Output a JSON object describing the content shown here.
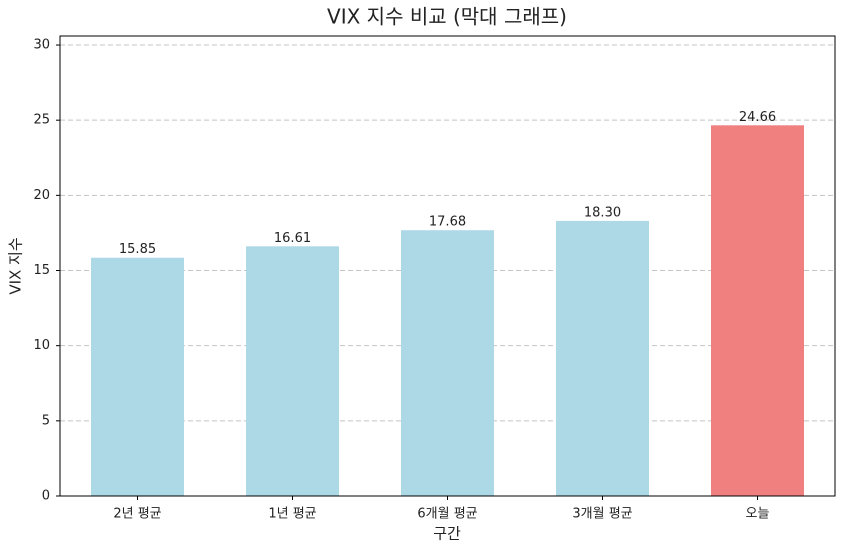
{
  "chart_data": {
    "type": "bar",
    "title": "VIX 지수 비교 (막대 그래프)",
    "x_label": "구간",
    "y_label": "VIX 지수",
    "categories": [
      "2년 평균",
      "1년 평균",
      "6개월 평균",
      "3개월 평균",
      "오늘"
    ],
    "values": [
      15.85,
      16.61,
      17.68,
      18.3,
      24.66
    ],
    "value_labels": [
      "15.85",
      "16.61",
      "17.68",
      "18.30",
      "24.66"
    ],
    "colors": [
      "#add8e6",
      "#add8e6",
      "#add8e6",
      "#add8e6",
      "#f08080"
    ],
    "ylim": [
      0,
      30.6
    ],
    "yticks": [
      0,
      5,
      10,
      15,
      20,
      25,
      30
    ],
    "grid": true
  }
}
